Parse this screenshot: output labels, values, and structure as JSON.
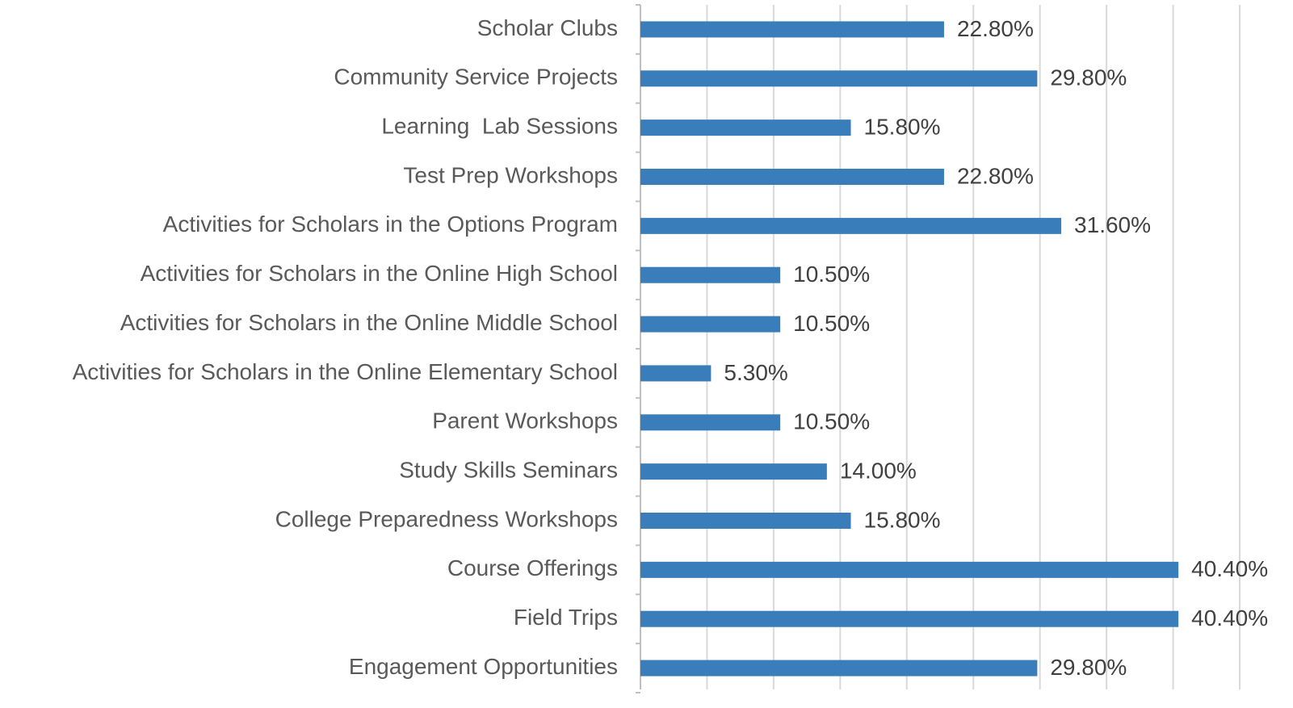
{
  "chart_data": {
    "type": "bar",
    "orientation": "horizontal",
    "categories": [
      "Scholar Clubs",
      "Community Service Projects",
      "Learning  Lab Sessions",
      "Test Prep Workshops",
      "Activities for Scholars in the Options Program",
      "Activities for Scholars in the Online High School",
      "Activities for Scholars in the Online Middle School",
      "Activities for Scholars in the Online Elementary School",
      "Parent Workshops",
      "Study Skills Seminars",
      "College Preparedness Workshops",
      "Course Offerings",
      "Field Trips",
      "Engagement Opportunities"
    ],
    "values": [
      22.8,
      29.8,
      15.8,
      22.8,
      31.6,
      10.5,
      10.5,
      5.3,
      10.5,
      14.0,
      15.8,
      40.4,
      40.4,
      29.8
    ],
    "value_labels": [
      "22.80%",
      "29.80%",
      "15.80%",
      "22.80%",
      "31.60%",
      "10.50%",
      "10.50%",
      "5.30%",
      "10.50%",
      "14.00%",
      "15.80%",
      "40.40%",
      "40.40%",
      "29.80%"
    ],
    "color": "#3a7dbb",
    "xlim": [
      0,
      45
    ],
    "xticks": [
      0,
      5,
      10,
      15,
      20,
      25,
      30,
      35,
      40,
      45
    ],
    "grid": true
  }
}
